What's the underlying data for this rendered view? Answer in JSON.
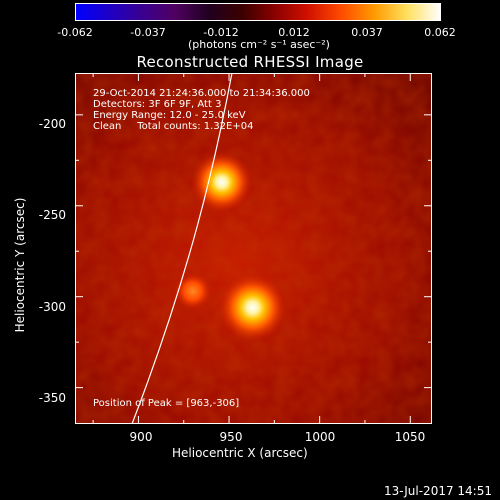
{
  "colorbar": {
    "tick_labels": [
      "-0.062",
      "-0.037",
      "-0.012",
      "0.012",
      "0.037",
      "0.062"
    ],
    "units_label": "(photons cm⁻² s⁻¹ asec⁻²)",
    "colormap": [
      "#0000ff",
      "#1d00c8",
      "#3a0090",
      "#500060",
      "#200020",
      "#3a0000",
      "#8a0000",
      "#d01000",
      "#ff4a00",
      "#ff9a00",
      "#ffe060",
      "#ffffff"
    ]
  },
  "plot": {
    "title": "Reconstructed RHESSI Image",
    "xlabel": "Heliocentric X (arcsec)",
    "ylabel": "Heliocentric Y (arcsec)",
    "x_ticks": [
      "900",
      "950",
      "1000",
      "1050"
    ],
    "y_ticks": [
      "-200",
      "-250",
      "-300",
      "-350"
    ],
    "info": {
      "time_range": "29-Oct-2014 21:24:36.000 to 21:34:36.000",
      "detectors": "Detectors: 3F 6F 9F, Att 3",
      "energy": "Energy Range: 12.0 - 25.0 keV",
      "method": "Clean     Total counts: 1.32E+04"
    },
    "peak_text": "Position of Peak = [963,-306]",
    "sources": [
      {
        "x": 946,
        "y": -237,
        "strength": 0.85
      },
      {
        "x": 963,
        "y": -306,
        "strength": 1.0
      },
      {
        "x": 930,
        "y": -297,
        "strength": 0.35
      }
    ]
  },
  "timestamp": "13-Jul-2017 14:51"
}
